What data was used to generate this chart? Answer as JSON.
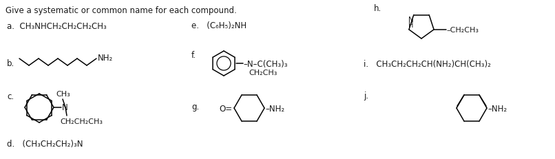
{
  "title": "Give a systematic or common name for each compound.",
  "background_color": "#ffffff",
  "text_color": "#1a1a1a",
  "font_size": 8.5,
  "figsize": [
    8.06,
    2.32
  ],
  "dpi": 100,
  "items": {
    "a": "a. CH₃NHCH₂CH₂CH₂CH₃",
    "e": "e. (C₆H₅)₂NH",
    "d": "d. (CH₃CH₂CH₂)₃N",
    "i": "i. CH₃CH₂CH₂CH(NH₂)CH(CH₃)₂"
  }
}
